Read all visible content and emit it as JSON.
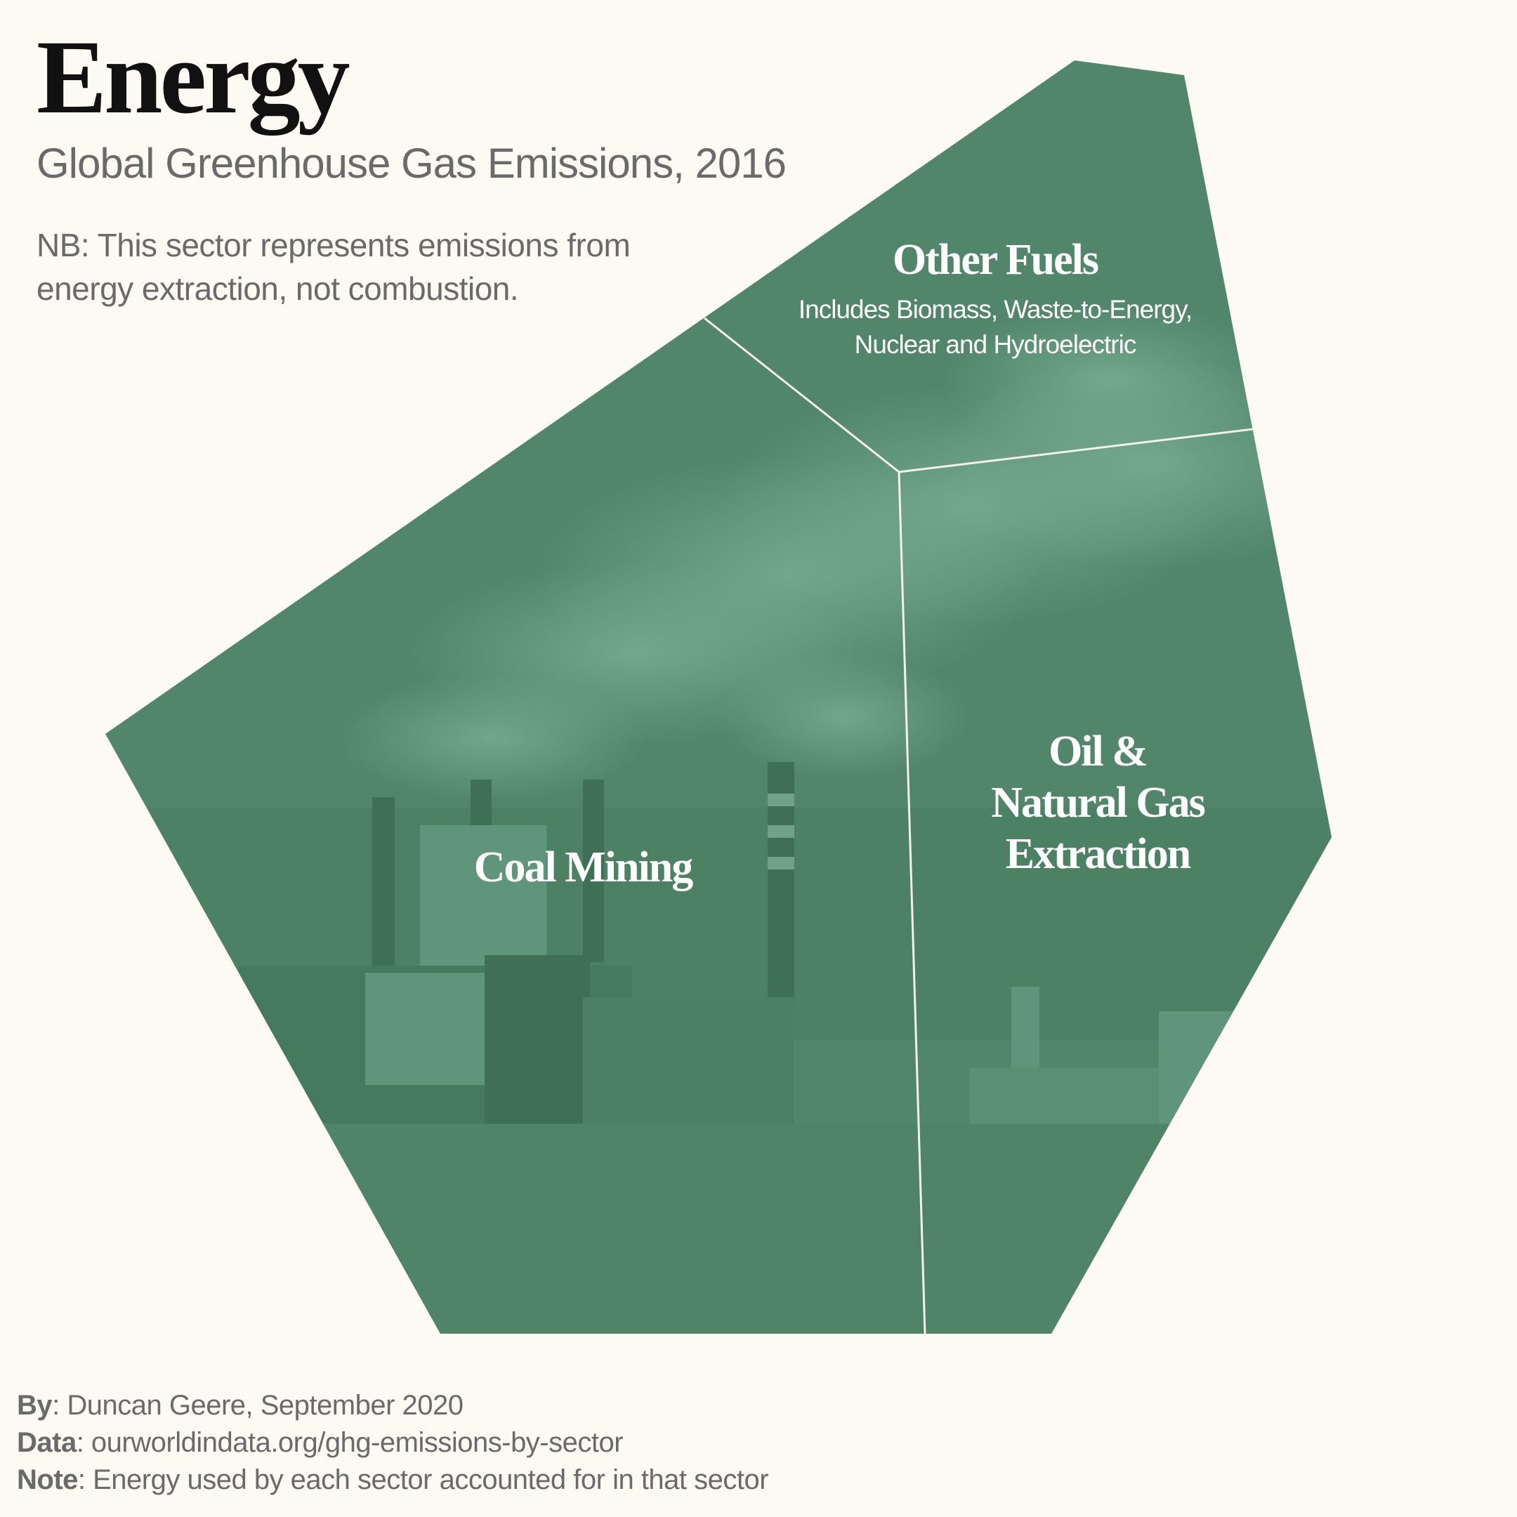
{
  "title": "Energy",
  "subtitle": "Global Greenhouse Gas Emissions, 2016",
  "note": "NB: This sector represents emissions from energy extraction, not combustion.",
  "colors": {
    "background": "#fcfaf3",
    "sector_green": "#52866a",
    "divider": "#f4f1e8"
  },
  "sectors": [
    {
      "name": "Coal Mining"
    },
    {
      "name": "Other Fuels",
      "description": [
        "Includes Biomass, Waste-to-Energy,",
        "Nuclear and Hydroelectric"
      ]
    },
    {
      "name": "Oil & Natural Gas Extraction",
      "lines": [
        "Oil &",
        "Natural Gas",
        "Extraction"
      ]
    }
  ],
  "credits": {
    "by_label": "By",
    "by_value": ": Duncan Geere, September 2020",
    "data_label": "Data",
    "data_value": ": ourworldindata.org/ghg-emissions-by-sector",
    "note_label": "Note",
    "note_value": ": Energy used by each sector accounted for in that sector"
  }
}
